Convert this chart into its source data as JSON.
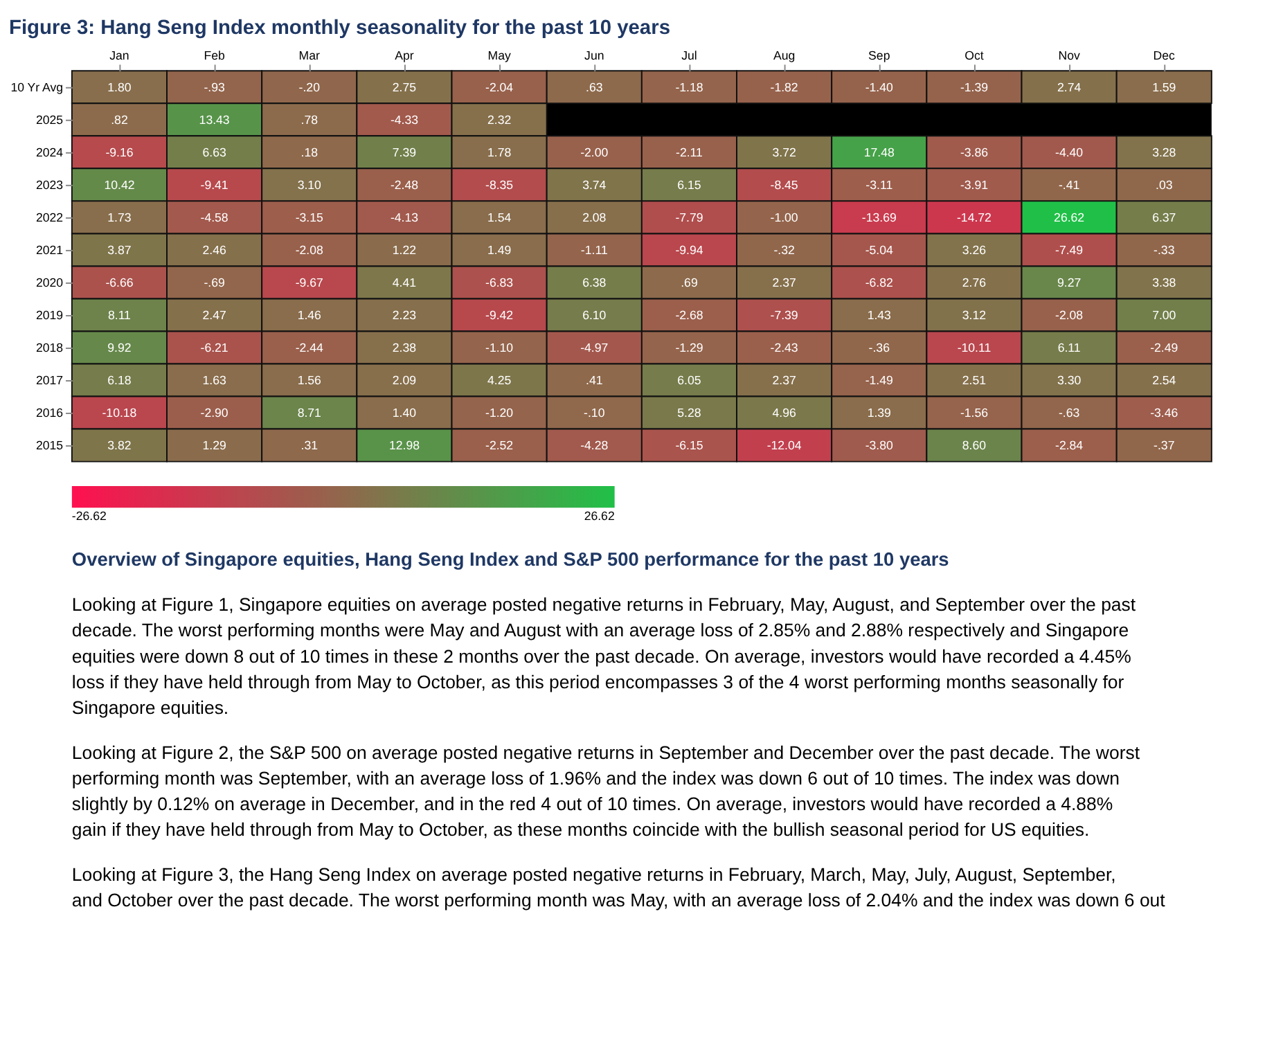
{
  "chart_data": {
    "type": "heatmap",
    "title": "Figure 3: Hang Seng Index monthly seasonality for the past 10 years",
    "categories": [
      "Jan",
      "Feb",
      "Mar",
      "Apr",
      "May",
      "Jun",
      "Jul",
      "Aug",
      "Sep",
      "Oct",
      "Nov",
      "Dec"
    ],
    "y_categories": [
      "10 Yr Avg",
      "2025",
      "2024",
      "2023",
      "2022",
      "2021",
      "2020",
      "2019",
      "2018",
      "2017",
      "2016",
      "2015"
    ],
    "cells": [
      [
        1.8,
        -0.93,
        -0.2,
        2.75,
        -2.04,
        0.63,
        -1.18,
        -1.82,
        -1.4,
        -1.39,
        2.74,
        1.59
      ],
      [
        0.82,
        13.43,
        0.78,
        -4.33,
        2.32,
        null,
        null,
        null,
        null,
        null,
        null,
        null
      ],
      [
        -9.16,
        6.63,
        0.18,
        7.39,
        1.78,
        -2.0,
        -2.11,
        3.72,
        17.48,
        -3.86,
        -4.4,
        3.28
      ],
      [
        10.42,
        -9.41,
        3.1,
        -2.48,
        -8.35,
        3.74,
        6.15,
        -8.45,
        -3.11,
        -3.91,
        -0.41,
        0.03
      ],
      [
        1.73,
        -4.58,
        -3.15,
        -4.13,
        1.54,
        2.08,
        -7.79,
        -1.0,
        -13.69,
        -14.72,
        26.62,
        6.37
      ],
      [
        3.87,
        2.46,
        -2.08,
        1.22,
        1.49,
        -1.11,
        -9.94,
        -0.32,
        -5.04,
        3.26,
        -7.49,
        -0.33
      ],
      [
        -6.66,
        -0.69,
        -9.67,
        4.41,
        -6.83,
        6.38,
        0.69,
        2.37,
        -6.82,
        2.76,
        9.27,
        3.38
      ],
      [
        8.11,
        2.47,
        1.46,
        2.23,
        -9.42,
        6.1,
        -2.68,
        -7.39,
        1.43,
        3.12,
        -2.08,
        7.0
      ],
      [
        9.92,
        -6.21,
        -2.44,
        2.38,
        -1.1,
        -4.97,
        -1.29,
        -2.43,
        -0.36,
        -10.11,
        6.11,
        -2.49
      ],
      [
        6.18,
        1.63,
        1.56,
        2.09,
        4.25,
        0.41,
        6.05,
        2.37,
        -1.49,
        2.51,
        3.3,
        2.54
      ],
      [
        -10.18,
        -2.9,
        8.71,
        1.4,
        -1.2,
        -0.1,
        5.28,
        4.96,
        1.39,
        -1.56,
        -0.63,
        -3.46
      ],
      [
        3.82,
        1.29,
        0.31,
        12.98,
        -2.52,
        -4.28,
        -6.15,
        -12.04,
        -3.8,
        8.6,
        -2.84,
        -0.37
      ]
    ],
    "cell_labels": [
      [
        "1.80",
        "-.93",
        "-.20",
        "2.75",
        "-2.04",
        ".63",
        "-1.18",
        "-1.82",
        "-1.40",
        "-1.39",
        "2.74",
        "1.59"
      ],
      [
        ".82",
        "13.43",
        ".78",
        "-4.33",
        "2.32",
        null,
        null,
        null,
        null,
        null,
        null,
        null
      ],
      [
        "-9.16",
        "6.63",
        ".18",
        "7.39",
        "1.78",
        "-2.00",
        "-2.11",
        "3.72",
        "17.48",
        "-3.86",
        "-4.40",
        "3.28"
      ],
      [
        "10.42",
        "-9.41",
        "3.10",
        "-2.48",
        "-8.35",
        "3.74",
        "6.15",
        "-8.45",
        "-3.11",
        "-3.91",
        "-.41",
        ".03"
      ],
      [
        "1.73",
        "-4.58",
        "-3.15",
        "-4.13",
        "1.54",
        "2.08",
        "-7.79",
        "-1.00",
        "-13.69",
        "-14.72",
        "26.62",
        "6.37"
      ],
      [
        "3.87",
        "2.46",
        "-2.08",
        "1.22",
        "1.49",
        "-1.11",
        "-9.94",
        "-.32",
        "-5.04",
        "3.26",
        "-7.49",
        "-.33"
      ],
      [
        "-6.66",
        "-.69",
        "-9.67",
        "4.41",
        "-6.83",
        "6.38",
        ".69",
        "2.37",
        "-6.82",
        "2.76",
        "9.27",
        "3.38"
      ],
      [
        "8.11",
        "2.47",
        "1.46",
        "2.23",
        "-9.42",
        "6.10",
        "-2.68",
        "-7.39",
        "1.43",
        "3.12",
        "-2.08",
        "7.00"
      ],
      [
        "9.92",
        "-6.21",
        "-2.44",
        "2.38",
        "-1.10",
        "-4.97",
        "-1.29",
        "-2.43",
        "-.36",
        "-10.11",
        "6.11",
        "-2.49"
      ],
      [
        "6.18",
        "1.63",
        "1.56",
        "2.09",
        "4.25",
        ".41",
        "6.05",
        "2.37",
        "-1.49",
        "2.51",
        "3.30",
        "2.54"
      ],
      [
        "-10.18",
        "-2.90",
        "8.71",
        "1.40",
        "-1.20",
        "-.10",
        "5.28",
        "4.96",
        "1.39",
        "-1.56",
        "-.63",
        "-3.46"
      ],
      [
        "3.82",
        "1.29",
        ".31",
        "12.98",
        "-2.52",
        "-4.28",
        "-6.15",
        "-12.04",
        "-3.80",
        "8.60",
        "-2.84",
        "-.37"
      ]
    ],
    "clim": [
      -26.62,
      26.62
    ],
    "cticks": [
      -26.62,
      26.62
    ],
    "grid": false,
    "annotations": [
      "Overview of Singapore equities, Hang Seng Index and S&P 500 performance for the past 10 years",
      "Looking at Figure 1, Singapore equities on average posted negative returns in February, May, August, and September over the past decade. The worst performing months were May and August with an average loss of 2.85% and 2.88% respectively and Singapore equities were down 8 out of 10 times in these 2 months over the past decade. On average, investors would have recorded a 4.45% loss if they have held through from May to October, as this period encompasses 3 of the 4 worst performing months seasonally for Singapore equities.",
      "Looking at Figure 2, the S&P 500 on average posted negative returns in September and December over the past decade. The worst performing month was September, with an average loss of 1.96% and the index was down 6 out of 10 times. The index was down slightly by 0.12% on average in December, and in the red 4 out of 10 times. On average, investors would have recorded a 4.88% gain if they have held through from May to October, as these months coincide with the bullish seasonal period for US equities.",
      "Looking at Figure 3, the Hang Seng Index on average posted negative returns in February, March, May, July, August, September, and October over the past decade. The worst performing month was May, with an average loss of 2.04% and the index was down 6 out"
    ]
  }
}
